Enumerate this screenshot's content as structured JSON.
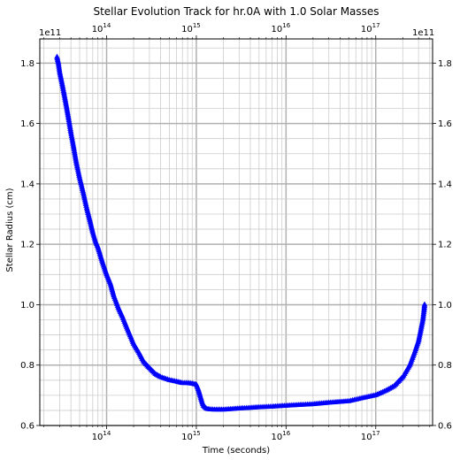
{
  "chart_data": {
    "type": "scatter",
    "title": "Stellar Evolution Track for hr.0A with 1.0 Solar Masses",
    "xlabel": "Time (seconds)",
    "ylabel": "Stellar Radius (cm)",
    "x_scale": "log",
    "xlim": [
      18000000000000.0,
      4.3e+17
    ],
    "ylim": [
      0.6,
      1.88
    ],
    "y_offset_text": "1e11",
    "x_ticks_major": [
      {
        "value": 100000000000000.0,
        "base": "10",
        "exp": "14"
      },
      {
        "value": 1000000000000000.0,
        "base": "10",
        "exp": "15"
      },
      {
        "value": 1e+16,
        "base": "10",
        "exp": "16"
      },
      {
        "value": 1e+17,
        "base": "10",
        "exp": "17"
      }
    ],
    "y_ticks": [
      "0.6",
      "0.8",
      "1.0",
      "1.2",
      "1.4",
      "1.6",
      "1.8"
    ],
    "grid": true,
    "marker": "triangle-up",
    "marker_color": "#0000ff",
    "series": [
      {
        "name": "",
        "x": [
          28000000000000.0,
          29000000000000.0,
          30000000000000.0,
          32000000000000.0,
          34000000000000.0,
          36000000000000.0,
          38000000000000.0,
          40000000000000.0,
          43000000000000.0,
          46000000000000.0,
          50000000000000.0,
          55000000000000.0,
          60000000000000.0,
          65000000000000.0,
          70000000000000.0,
          75000000000000.0,
          80000000000000.0,
          90000000000000.0,
          100000000000000.0,
          110000000000000.0,
          120000000000000.0,
          135000000000000.0,
          150000000000000.0,
          170000000000000.0,
          200000000000000.0,
          230000000000000.0,
          260000000000000.0,
          300000000000000.0,
          350000000000000.0,
          400000000000000.0,
          500000000000000.0,
          600000000000000.0,
          700000000000000.0,
          800000000000000.0,
          900000000000000.0,
          1000000000000000.0,
          1050000000000000.0,
          1100000000000000.0,
          1150000000000000.0,
          1200000000000000.0,
          1300000000000000.0,
          1400000000000000.0,
          1600000000000000.0,
          2000000000000000.0,
          2500000000000000.0,
          3000000000000000.0,
          4000000000000000.0,
          5000000000000000.0,
          7000000000000000.0,
          1e+16,
          1.5e+16,
          2e+16,
          3e+16,
          5e+16,
          7e+16,
          1e+17,
          1.3e+17,
          1.6e+17,
          2e+17,
          2.4e+17,
          2.7e+17,
          3e+17,
          3.2e+17,
          3.35e+17,
          3.45e+17,
          3.5e+17
        ],
        "y": [
          1.82,
          1.8,
          1.77,
          1.73,
          1.69,
          1.65,
          1.61,
          1.57,
          1.52,
          1.47,
          1.42,
          1.37,
          1.32,
          1.28,
          1.24,
          1.21,
          1.19,
          1.14,
          1.1,
          1.07,
          1.03,
          0.99,
          0.96,
          0.92,
          0.87,
          0.84,
          0.81,
          0.79,
          0.77,
          0.76,
          0.75,
          0.745,
          0.74,
          0.74,
          0.738,
          0.735,
          0.72,
          0.7,
          0.68,
          0.665,
          0.655,
          0.653,
          0.652,
          0.652,
          0.654,
          0.656,
          0.658,
          0.66,
          0.662,
          0.665,
          0.668,
          0.67,
          0.675,
          0.68,
          0.69,
          0.7,
          0.715,
          0.73,
          0.76,
          0.8,
          0.84,
          0.88,
          0.92,
          0.95,
          0.98,
          1.0
        ]
      }
    ]
  }
}
